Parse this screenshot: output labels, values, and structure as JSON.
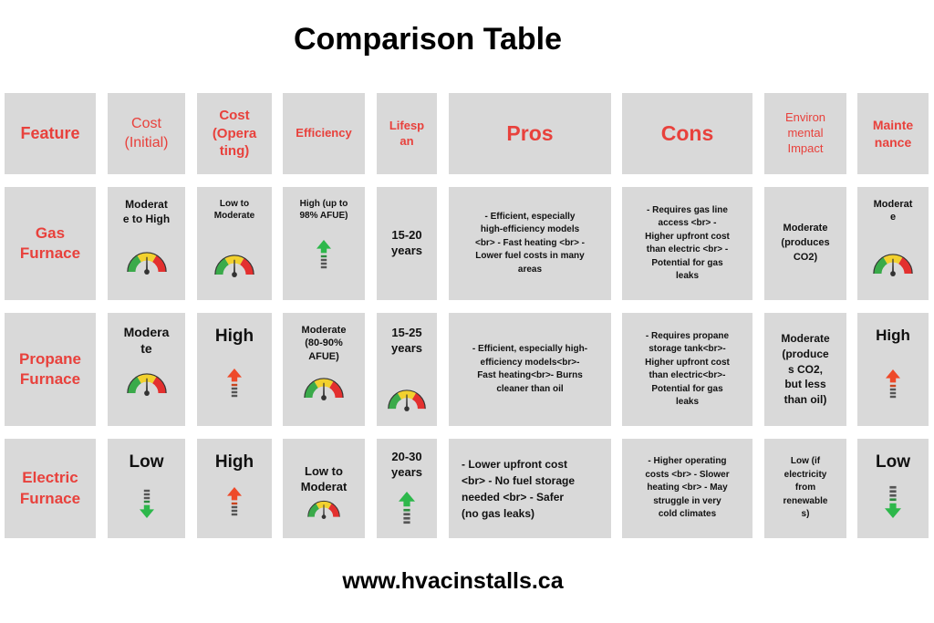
{
  "title": "Comparison Table",
  "footer": "www.hvacinstalls.ca",
  "colors": {
    "accent": "#e8413c",
    "cell_bg": "#d9d9d9",
    "arrow_up_green": "#2db84b",
    "arrow_up_red": "#ee4a2a",
    "arrow_down_green": "#2db84b"
  },
  "headers": [
    "Feature",
    "Cost (Initial)",
    "Cost (Operating)",
    "Efficiency",
    "Lifespan",
    "Pros",
    "Cons",
    "Environmental Impact",
    "Maintenance"
  ],
  "header_display": [
    "Feature",
    "Cost\n(Initial)",
    "Cost\n(Opera\nting)",
    "Efficiency",
    "Lifesp\nan",
    "Pros",
    "Cons",
    "Environ\nmental\nImpact",
    "Mainte\nnance"
  ],
  "rows": [
    {
      "feature": "Gas\nFurnace",
      "cost_initial": "Moderat\ne to High",
      "cost_initial_icon": "gauge-icon",
      "cost_operating": "Low to\nModerate",
      "cost_operating_icon": "gauge-icon",
      "efficiency": "High (up to\n98% AFUE)",
      "efficiency_icon": "arrow-up-green-icon",
      "lifespan": "15-20\nyears",
      "pros": "- Efficient, especially\nhigh-efficiency models\n<br> - Fast heating <br> -\nLower fuel costs in many\nareas",
      "cons": "- Requires gas line\naccess <br> -\nHigher upfront cost\nthan electric <br> -\nPotential for gas\nleaks",
      "environmental": "Moderate\n(produces\nCO2)",
      "maintenance": "Moderat\ne",
      "maintenance_icon": "gauge-icon"
    },
    {
      "feature": "Propane\nFurnace",
      "cost_initial": "Modera\nte",
      "cost_initial_icon": "gauge-icon",
      "cost_operating": "High",
      "cost_operating_icon": "arrow-up-red-icon",
      "efficiency": "Moderate\n(80-90%\nAFUE)",
      "efficiency_icon": "gauge-icon",
      "lifespan": "15-25\nyears",
      "lifespan_icon": "gauge-icon",
      "pros": "- Efficient, especially high-\nefficiency models<br>-\nFast heating<br>- Burns\ncleaner than oil",
      "cons": "- Requires propane\nstorage tank<br>-\nHigher upfront cost\nthan electric<br>-\nPotential for gas\nleaks",
      "environmental": "Moderate\n(produce\ns CO2,\nbut less\nthan oil)",
      "maintenance": "High",
      "maintenance_icon": "arrow-up-red-icon"
    },
    {
      "feature": "Electric\nFurnace",
      "cost_initial": "Low",
      "cost_initial_icon": "arrow-down-green-icon",
      "cost_operating": "High",
      "cost_operating_icon": "arrow-up-red-icon",
      "efficiency": "Low to\nModerat",
      "efficiency_icon": "gauge-icon",
      "lifespan": "20-30\nyears",
      "lifespan_icon": "arrow-up-green-icon",
      "pros": "- Lower upfront cost\n<br> - No fuel storage\nneeded <br> - Safer\n(no gas leaks)",
      "cons": "- Higher operating\ncosts <br> - Slower\nheating <br> - May\nstruggle in very\ncold climates",
      "environmental": "Low (if\nelectricity\nfrom\nrenewable\ns)",
      "maintenance": "Low",
      "maintenance_icon": "arrow-down-green-icon"
    }
  ]
}
